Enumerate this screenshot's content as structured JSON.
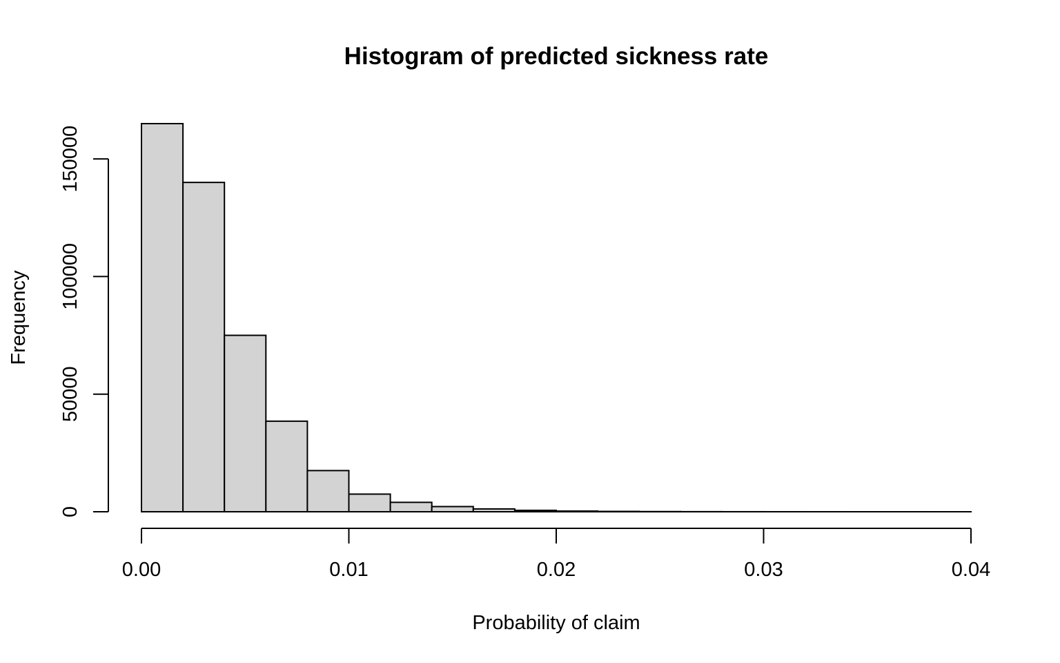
{
  "chart_data": {
    "type": "bar",
    "title": "Histogram of predicted sickness rate",
    "xlabel": "Probability of claim",
    "ylabel": "Frequency",
    "bins": [
      {
        "x0": 0.0,
        "x1": 0.002,
        "count": 165000
      },
      {
        "x0": 0.002,
        "x1": 0.004,
        "count": 140000
      },
      {
        "x0": 0.004,
        "x1": 0.006,
        "count": 75000
      },
      {
        "x0": 0.006,
        "x1": 0.008,
        "count": 38500
      },
      {
        "x0": 0.008,
        "x1": 0.01,
        "count": 17500
      },
      {
        "x0": 0.01,
        "x1": 0.012,
        "count": 7500
      },
      {
        "x0": 0.012,
        "x1": 0.014,
        "count": 4000
      },
      {
        "x0": 0.014,
        "x1": 0.016,
        "count": 2200
      },
      {
        "x0": 0.016,
        "x1": 0.018,
        "count": 1200
      },
      {
        "x0": 0.018,
        "x1": 0.02,
        "count": 600
      },
      {
        "x0": 0.02,
        "x1": 0.022,
        "count": 300
      },
      {
        "x0": 0.022,
        "x1": 0.024,
        "count": 150
      },
      {
        "x0": 0.024,
        "x1": 0.026,
        "count": 80
      },
      {
        "x0": 0.026,
        "x1": 0.028,
        "count": 40
      },
      {
        "x0": 0.028,
        "x1": 0.03,
        "count": 20
      },
      {
        "x0": 0.03,
        "x1": 0.032,
        "count": 10
      },
      {
        "x0": 0.032,
        "x1": 0.034,
        "count": 5
      },
      {
        "x0": 0.034,
        "x1": 0.036,
        "count": 3
      },
      {
        "x0": 0.036,
        "x1": 0.038,
        "count": 2
      },
      {
        "x0": 0.038,
        "x1": 0.04,
        "count": 1
      }
    ],
    "xlim": [
      0,
      0.04
    ],
    "ylim": [
      0,
      165000
    ],
    "x_ticks": [
      0.0,
      0.01,
      0.02,
      0.03,
      0.04
    ],
    "x_tick_labels": [
      "0.00",
      "0.01",
      "0.02",
      "0.03",
      "0.04"
    ],
    "y_ticks": [
      0,
      50000,
      100000,
      150000
    ],
    "y_tick_labels": [
      "0",
      "50000",
      "100000",
      "150000"
    ],
    "grid": false,
    "colors": {
      "bar_fill": "#d3d3d3",
      "bar_stroke": "#000000",
      "axis": "#000000",
      "background": "#ffffff"
    }
  }
}
